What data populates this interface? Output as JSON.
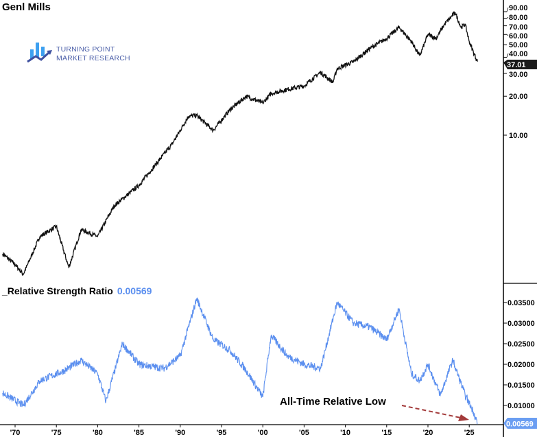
{
  "chart_data": [
    {
      "type": "line",
      "title": "Genl Mills",
      "scale": "log",
      "y_ticks": [
        "90.00",
        "80.00",
        "70.00",
        "60.00",
        "50.00",
        "40.00",
        "30.00",
        "20.00",
        "10.00"
      ],
      "y_tick_values": [
        90,
        80,
        70,
        60,
        50,
        40,
        30,
        20,
        10
      ],
      "last_value_label": "37.01",
      "series": [
        {
          "name": "Genl Mills",
          "color": "#000000",
          "x": [
            1968.5,
            1970,
            1971,
            1973,
            1975,
            1976.5,
            1978,
            1980,
            1982,
            1985,
            1987,
            1989,
            1991,
            1992,
            1994,
            1996,
            1998,
            2000,
            2001,
            2003,
            2005,
            2007,
            2008.5,
            2009,
            2011,
            2013,
            2015,
            2016.5,
            2018,
            2019,
            2020,
            2021,
            2022,
            2023.3,
            2024,
            2024.5,
            2025,
            2025.5,
            2026
          ],
          "values": [
            1.21,
            1.0,
            0.84,
            1.65,
            1.97,
            0.95,
            1.86,
            1.65,
            2.85,
            4.1,
            5.9,
            8.5,
            14,
            14.2,
            10.9,
            15.7,
            20,
            17.7,
            21,
            22.6,
            24,
            30.7,
            25.6,
            32.7,
            37,
            47,
            56,
            68,
            53,
            41,
            60,
            56,
            72,
            89,
            68,
            72,
            53,
            44,
            37.01
          ]
        }
      ]
    },
    {
      "type": "line",
      "title": "_Relative Strength Ratio",
      "value_label": "0.00569",
      "y_ticks": [
        "0.03500",
        "0.03000",
        "0.02500",
        "0.02000",
        "0.01500",
        "0.01000"
      ],
      "y_tick_values": [
        0.035,
        0.03,
        0.025,
        0.02,
        0.015,
        0.01
      ],
      "x_ticks": [
        "'70",
        "'75",
        "'80",
        "'85",
        "'90",
        "'95",
        "'00",
        "'05",
        "'10",
        "'15",
        "'20",
        "'25"
      ],
      "x_tick_values": [
        1970,
        1975,
        1980,
        1985,
        1990,
        1995,
        2000,
        2005,
        2010,
        2015,
        2020,
        2025
      ],
      "annotation": "All-Time Relative Low",
      "series": [
        {
          "name": "Relative Strength Ratio",
          "color": "#5b8fef",
          "x": [
            1968.5,
            1971,
            1973,
            1976,
            1978,
            1980,
            1981,
            1983,
            1985,
            1988,
            1990,
            1992,
            1994,
            1996,
            1998,
            2000,
            2001,
            2003,
            2005,
            2007,
            2009,
            2011,
            2013,
            2015,
            2016.5,
            2018,
            2019,
            2020,
            2021.5,
            2023,
            2024.5,
            2025.5,
            2026
          ],
          "values": [
            0.013,
            0.01,
            0.016,
            0.0185,
            0.021,
            0.0177,
            0.011,
            0.025,
            0.02,
            0.019,
            0.022,
            0.036,
            0.026,
            0.0235,
            0.0185,
            0.012,
            0.027,
            0.022,
            0.02,
            0.019,
            0.035,
            0.03,
            0.029,
            0.026,
            0.0335,
            0.0177,
            0.016,
            0.02,
            0.0125,
            0.021,
            0.0125,
            0.0085,
            0.00569
          ]
        }
      ]
    }
  ],
  "logo": {
    "line1": "TURNING POINT",
    "line2": "MARKET RESEARCH"
  }
}
